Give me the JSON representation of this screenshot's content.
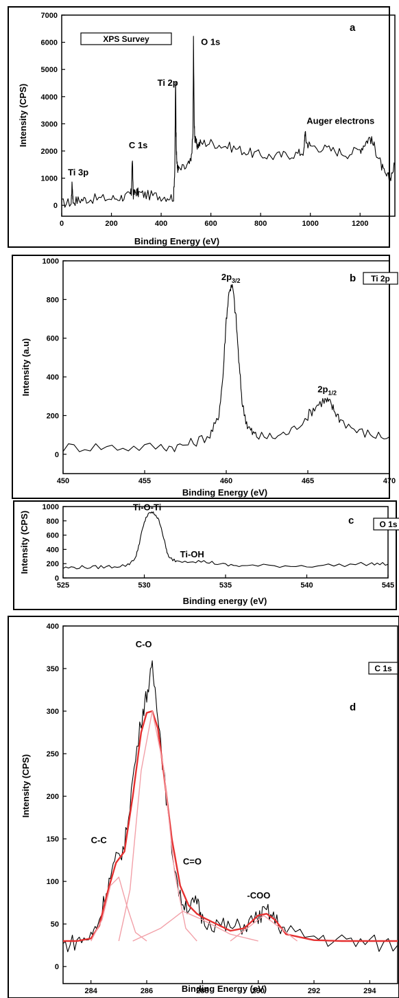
{
  "chart_data": [
    {
      "type": "line",
      "panel_letter": "a",
      "boxed_label": "XPS Survey",
      "xlabel": "Binding Energy (eV)",
      "ylabel": "Intensity (CPS)",
      "xlim": [
        0,
        1340
      ],
      "ylim": [
        -400,
        7000
      ],
      "xticks": [
        0,
        200,
        400,
        600,
        800,
        1000,
        1200
      ],
      "yticks": [
        0,
        1000,
        2000,
        3000,
        4000,
        5000,
        6000,
        7000
      ],
      "annotations": [
        {
          "text": "O 1s",
          "x": 560,
          "y": 5900
        },
        {
          "text": "Ti 2p",
          "x": 385,
          "y": 4400
        },
        {
          "text": "C 1s",
          "x": 270,
          "y": 2100
        },
        {
          "text": "Ti 3p",
          "x": 25,
          "y": 1100
        },
        {
          "text": "Auger electrons",
          "x": 985,
          "y": 3000
        }
      ],
      "series": [
        {
          "color": "#000000",
          "x": [
            0,
            38,
            42,
            46,
            70,
            100,
            150,
            200,
            240,
            270,
            280,
            284,
            288,
            300,
            310,
            340,
            380,
            420,
            450,
            455,
            458,
            460,
            462,
            465,
            470,
            500,
            520,
            528,
            530,
            533,
            536,
            545,
            560,
            600,
            650,
            700,
            750,
            800,
            850,
            900,
            950,
            975,
            978,
            985,
            1000,
            1050,
            1100,
            1150,
            1200,
            1220,
            1240,
            1260,
            1280,
            1300,
            1320,
            1340
          ],
          "y": [
            80,
            100,
            820,
            150,
            200,
            230,
            250,
            250,
            300,
            350,
            450,
            1700,
            400,
            500,
            450,
            380,
            350,
            320,
            300,
            1400,
            4600,
            2700,
            1800,
            1400,
            1300,
            1400,
            1600,
            2600,
            6100,
            3100,
            2400,
            2200,
            2300,
            2300,
            2200,
            2100,
            1950,
            1850,
            1800,
            1850,
            1900,
            2000,
            2700,
            2300,
            2200,
            2100,
            2000,
            1900,
            2050,
            2300,
            2500,
            2100,
            1600,
            1100,
            1000,
            1500
          ]
        }
      ]
    },
    {
      "type": "line",
      "panel_letter": "b",
      "boxed_label": "Ti 2p",
      "xlabel": "Binding Energy (eV)",
      "ylabel": "Intensity (a.u)",
      "xlim": [
        450,
        470
      ],
      "ylim": [
        -100,
        1000
      ],
      "xticks": [
        450,
        455,
        460,
        465,
        470
      ],
      "yticks": [
        0,
        200,
        400,
        600,
        800,
        1000
      ],
      "annotations": [
        {
          "text": "2p",
          "sub": "3/2",
          "x": 459.7,
          "y": 900
        },
        {
          "text": "2p",
          "sub": "1/2",
          "x": 465.6,
          "y": 320
        }
      ],
      "series": [
        {
          "color": "#000000",
          "x": [
            450,
            452,
            454,
            456,
            457,
            458,
            459,
            459.5,
            459.8,
            460,
            460.2,
            460.4,
            460.6,
            460.8,
            461,
            461.3,
            461.6,
            462,
            463,
            464,
            465,
            465.5,
            466,
            466.3,
            466.6,
            467,
            468,
            469,
            470
          ],
          "y": [
            35,
            40,
            35,
            40,
            40,
            60,
            100,
            180,
            400,
            700,
            860,
            860,
            700,
            450,
            250,
            150,
            110,
            90,
            90,
            120,
            200,
            250,
            280,
            270,
            230,
            180,
            120,
            100,
            90
          ]
        }
      ]
    },
    {
      "type": "line",
      "panel_letter": "c",
      "boxed_label": "O 1s",
      "xlabel": "Binding energy (eV)",
      "ylabel": "Intensity (CPS)",
      "xlim": [
        525,
        545
      ],
      "ylim": [
        0,
        1000
      ],
      "xticks": [
        525,
        530,
        535,
        540,
        545
      ],
      "yticks": [
        0,
        200,
        400,
        600,
        800,
        1000
      ],
      "annotations": [
        {
          "text": "Ti-O-Ti",
          "x": 529.3,
          "y": 945
        },
        {
          "text": "Ti-OH",
          "x": 532.2,
          "y": 290
        }
      ],
      "series": [
        {
          "color": "#000000",
          "x": [
            525,
            526,
            527,
            528,
            529,
            529.5,
            529.8,
            530.1,
            530.4,
            530.7,
            531,
            531.3,
            531.5,
            532,
            533,
            534,
            535,
            536,
            538,
            540,
            542,
            544,
            545
          ],
          "y": [
            140,
            150,
            150,
            160,
            180,
            300,
            600,
            850,
            920,
            890,
            750,
            450,
            280,
            240,
            240,
            220,
            180,
            170,
            170,
            170,
            180,
            200,
            190
          ]
        }
      ]
    },
    {
      "type": "line",
      "panel_letter": "d",
      "boxed_label": "C 1s",
      "xlabel": "Binding Energy (eV)",
      "ylabel": "Intensity (CPS)",
      "xlim": [
        283,
        295
      ],
      "ylim": [
        -20,
        400
      ],
      "xticks": [
        284,
        286,
        288,
        290,
        292,
        294
      ],
      "yticks": [
        0,
        50,
        100,
        150,
        200,
        250,
        300,
        350,
        400
      ],
      "annotations": [
        {
          "text": "C-O",
          "x": 285.6,
          "y": 375
        },
        {
          "text": "C-C",
          "x": 284.0,
          "y": 145
        },
        {
          "text": "C=O",
          "x": 287.3,
          "y": 120
        },
        {
          "text": "-COO",
          "x": 289.6,
          "y": 80
        }
      ],
      "series": [
        {
          "color": "#000000",
          "x": [
            283,
            283.5,
            284,
            284.3,
            284.6,
            284.9,
            285.2,
            285.5,
            285.8,
            286,
            286.2,
            286.4,
            286.6,
            286.9,
            287.2,
            287.5,
            287.8,
            288,
            288.5,
            289,
            289.5,
            290,
            290.3,
            290.6,
            291,
            292,
            293,
            294,
            295
          ],
          "y": [
            25,
            30,
            35,
            55,
            95,
            125,
            140,
            220,
            290,
            320,
            350,
            300,
            230,
            140,
            80,
            70,
            75,
            55,
            50,
            45,
            48,
            58,
            65,
            55,
            40,
            35,
            30,
            28,
            25
          ]
        },
        {
          "color": "#e53030",
          "x": [
            283,
            283.5,
            284,
            284.3,
            284.6,
            284.9,
            285.2,
            285.5,
            285.8,
            286,
            286.2,
            286.4,
            286.6,
            286.9,
            287.2,
            287.5,
            287.8,
            288,
            288.5,
            289,
            289.5,
            290,
            290.3,
            290.6,
            291,
            292,
            293,
            294,
            295
          ],
          "y": [
            30,
            30,
            33,
            48,
            88,
            122,
            135,
            200,
            275,
            298,
            300,
            280,
            230,
            150,
            95,
            72,
            62,
            58,
            50,
            42,
            45,
            60,
            62,
            55,
            38,
            31,
            30,
            30,
            30
          ]
        },
        {
          "color": "#f2a0a8",
          "x": [
            284,
            284.4,
            284.7,
            285,
            285.3,
            285.6,
            286
          ],
          "y": [
            30,
            55,
            95,
            105,
            70,
            40,
            30
          ]
        },
        {
          "color": "#f2a0a8",
          "x": [
            285,
            285.4,
            285.8,
            286.2,
            286.6,
            287,
            287.4,
            287.8
          ],
          "y": [
            30,
            90,
            230,
            300,
            235,
            110,
            45,
            30
          ]
        },
        {
          "color": "#f2a0a8",
          "x": [
            285.5,
            286.5,
            287.3,
            288,
            289,
            290
          ],
          "y": [
            30,
            45,
            65,
            55,
            38,
            30
          ]
        },
        {
          "color": "#f2a0a8",
          "x": [
            289,
            289.6,
            290.2,
            290.8,
            291.4
          ],
          "y": [
            30,
            45,
            60,
            45,
            30
          ]
        }
      ]
    }
  ]
}
